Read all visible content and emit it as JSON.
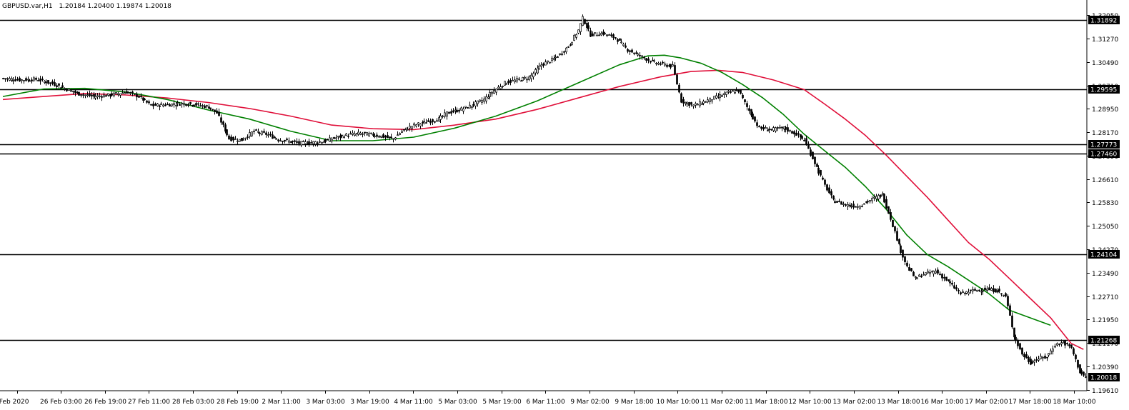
{
  "header": {
    "symbol_timeframe": "GBPUSD.var,H1",
    "ohlc": "1.20184 1.20400 1.19874 1.20018"
  },
  "colors": {
    "background": "#ffffff",
    "candle_outline": "#000000",
    "bull_body": "#ffffff",
    "bear_body": "#000000",
    "ma_fast": "#008000",
    "ma_slow": "#e0103a",
    "hline": "#000000",
    "price_tag_text": "#ffffff",
    "price_tag_bg": "#000000"
  },
  "chart_data": {
    "type": "candlestick",
    "symbol": "GBPUSD.var",
    "timeframe": "H1",
    "ylim": [
      1.1953,
      1.3227
    ],
    "y_ticks": [
      "1.32050",
      "1.31270",
      "1.30490",
      "1.29710",
      "1.28950",
      "1.28170",
      "1.27390",
      "1.26610",
      "1.25830",
      "1.25050",
      "1.24270",
      "1.23490",
      "1.22710",
      "1.21950",
      "1.21170",
      "1.20390",
      "1.19610"
    ],
    "x_ticks": [
      "Feb 2020",
      "26 Feb 03:00",
      "26 Feb 19:00",
      "27 Feb 11:00",
      "28 Feb 03:00",
      "28 Feb 19:00",
      "2 Mar 11:00",
      "3 Mar 03:00",
      "3 Mar 19:00",
      "4 Mar 11:00",
      "5 Mar 03:00",
      "5 Mar 19:00",
      "6 Mar 11:00",
      "9 Mar 02:00",
      "9 Mar 18:00",
      "10 Mar 10:00",
      "11 Mar 02:00",
      "11 Mar 18:00",
      "12 Mar 10:00",
      "13 Mar 02:00",
      "13 Mar 18:00",
      "16 Mar 10:00",
      "17 Mar 02:00",
      "17 Mar 18:00",
      "18 Mar 10:00"
    ],
    "horizontal_levels": [
      1.31892,
      1.29595,
      1.27773,
      1.2746,
      1.24104,
      1.21268
    ],
    "level_labels": [
      "1.31892",
      "1.29595",
      "1.27773",
      "1.27460",
      "1.24104",
      "1.21268"
    ],
    "current_price": 1.20018,
    "current_price_label": "1.20018",
    "close_path": [
      [
        0,
        1.2995
      ],
      [
        8,
        1.299
      ],
      [
        16,
        1.2992
      ],
      [
        24,
        1.2978
      ],
      [
        30,
        1.2962
      ],
      [
        36,
        1.2945
      ],
      [
        44,
        1.2935
      ],
      [
        52,
        1.294
      ],
      [
        60,
        1.295
      ],
      [
        66,
        1.2935
      ],
      [
        72,
        1.2905
      ],
      [
        80,
        1.2908
      ],
      [
        88,
        1.2912
      ],
      [
        94,
        1.2908
      ],
      [
        100,
        1.29
      ],
      [
        104,
        1.288
      ],
      [
        110,
        1.2795
      ],
      [
        116,
        1.279
      ],
      [
        122,
        1.282
      ],
      [
        128,
        1.281
      ],
      [
        134,
        1.2792
      ],
      [
        140,
        1.2785
      ],
      [
        144,
        1.278
      ],
      [
        150,
        1.2782
      ],
      [
        156,
        1.2786
      ],
      [
        162,
        1.2798
      ],
      [
        168,
        1.2808
      ],
      [
        174,
        1.2812
      ],
      [
        180,
        1.2808
      ],
      [
        186,
        1.28
      ],
      [
        190,
        1.2795
      ],
      [
        194,
        1.282
      ],
      [
        200,
        1.284
      ],
      [
        206,
        1.285
      ],
      [
        212,
        1.286
      ],
      [
        216,
        1.288
      ],
      [
        222,
        1.289
      ],
      [
        228,
        1.2905
      ],
      [
        234,
        1.2925
      ],
      [
        238,
        1.295
      ],
      [
        244,
        1.298
      ],
      [
        250,
        1.299
      ],
      [
        256,
        1.2998
      ],
      [
        262,
        1.304
      ],
      [
        268,
        1.306
      ],
      [
        272,
        1.308
      ],
      [
        276,
        1.311
      ],
      [
        280,
        1.3155
      ],
      [
        282,
        1.3195
      ],
      [
        286,
        1.314
      ],
      [
        292,
        1.3145
      ],
      [
        298,
        1.313
      ],
      [
        304,
        1.309
      ],
      [
        310,
        1.307
      ],
      [
        316,
        1.305
      ],
      [
        322,
        1.304
      ],
      [
        326,
        1.3035
      ],
      [
        330,
        1.292
      ],
      [
        336,
        1.2905
      ],
      [
        342,
        1.292
      ],
      [
        348,
        1.2935
      ],
      [
        354,
        1.295
      ],
      [
        358,
        1.2955
      ],
      [
        362,
        1.29
      ],
      [
        368,
        1.283
      ],
      [
        374,
        1.2825
      ],
      [
        380,
        1.283
      ],
      [
        386,
        1.281
      ],
      [
        390,
        1.279
      ],
      [
        396,
        1.27
      ],
      [
        400,
        1.264
      ],
      [
        404,
        1.259
      ],
      [
        410,
        1.2575
      ],
      [
        416,
        1.257
      ],
      [
        422,
        1.259
      ],
      [
        428,
        1.261
      ],
      [
        432,
        1.253
      ],
      [
        436,
        1.244
      ],
      [
        440,
        1.237
      ],
      [
        444,
        1.233
      ],
      [
        448,
        1.2345
      ],
      [
        454,
        1.2355
      ],
      [
        460,
        1.232
      ],
      [
        466,
        1.228
      ],
      [
        472,
        1.229
      ],
      [
        478,
        1.2295
      ],
      [
        484,
        1.229
      ],
      [
        488,
        1.227
      ],
      [
        492,
        1.214
      ],
      [
        496,
        1.208
      ],
      [
        500,
        1.205
      ],
      [
        504,
        1.2065
      ],
      [
        508,
        1.207
      ],
      [
        512,
        1.211
      ],
      [
        516,
        1.2118
      ],
      [
        520,
        1.21
      ],
      [
        524,
        1.202
      ],
      [
        527,
        1.20018
      ]
    ],
    "ma_fast_path": [
      [
        0,
        1.2935
      ],
      [
        20,
        1.296
      ],
      [
        40,
        1.2962
      ],
      [
        60,
        1.295
      ],
      [
        80,
        1.2925
      ],
      [
        100,
        1.289
      ],
      [
        120,
        1.286
      ],
      [
        140,
        1.282
      ],
      [
        160,
        1.2788
      ],
      [
        180,
        1.2788
      ],
      [
        200,
        1.28
      ],
      [
        220,
        1.283
      ],
      [
        240,
        1.287
      ],
      [
        260,
        1.292
      ],
      [
        280,
        1.298
      ],
      [
        300,
        1.304
      ],
      [
        314,
        1.307
      ],
      [
        322,
        1.3072
      ],
      [
        330,
        1.3063
      ],
      [
        340,
        1.3045
      ],
      [
        350,
        1.3015
      ],
      [
        360,
        1.2975
      ],
      [
        370,
        1.293
      ],
      [
        380,
        1.2875
      ],
      [
        390,
        1.281
      ],
      [
        400,
        1.2755
      ],
      [
        410,
        1.27
      ],
      [
        420,
        1.2635
      ],
      [
        430,
        1.256
      ],
      [
        440,
        1.2475
      ],
      [
        450,
        1.241
      ],
      [
        460,
        1.237
      ],
      [
        470,
        1.2325
      ],
      [
        480,
        1.228
      ],
      [
        490,
        1.2225
      ],
      [
        500,
        1.22
      ],
      [
        510,
        1.2175
      ]
    ],
    "ma_slow_path": [
      [
        0,
        1.2925
      ],
      [
        20,
        1.2935
      ],
      [
        40,
        1.2945
      ],
      [
        60,
        1.294
      ],
      [
        80,
        1.293
      ],
      [
        100,
        1.2915
      ],
      [
        120,
        1.2895
      ],
      [
        140,
        1.287
      ],
      [
        160,
        1.284
      ],
      [
        180,
        1.2828
      ],
      [
        200,
        1.2825
      ],
      [
        220,
        1.284
      ],
      [
        240,
        1.286
      ],
      [
        260,
        1.2892
      ],
      [
        280,
        1.293
      ],
      [
        300,
        1.2968
      ],
      [
        320,
        1.3
      ],
      [
        335,
        1.3018
      ],
      [
        348,
        1.3022
      ],
      [
        360,
        1.3015
      ],
      [
        375,
        1.299
      ],
      [
        390,
        1.2958
      ],
      [
        400,
        1.291
      ],
      [
        410,
        1.286
      ],
      [
        420,
        1.2805
      ],
      [
        430,
        1.274
      ],
      [
        440,
        1.267
      ],
      [
        450,
        1.26
      ],
      [
        460,
        1.2525
      ],
      [
        470,
        1.245
      ],
      [
        480,
        1.2395
      ],
      [
        490,
        1.233
      ],
      [
        500,
        1.2265
      ],
      [
        510,
        1.22
      ],
      [
        520,
        1.2115
      ],
      [
        526,
        1.2095
      ]
    ]
  }
}
